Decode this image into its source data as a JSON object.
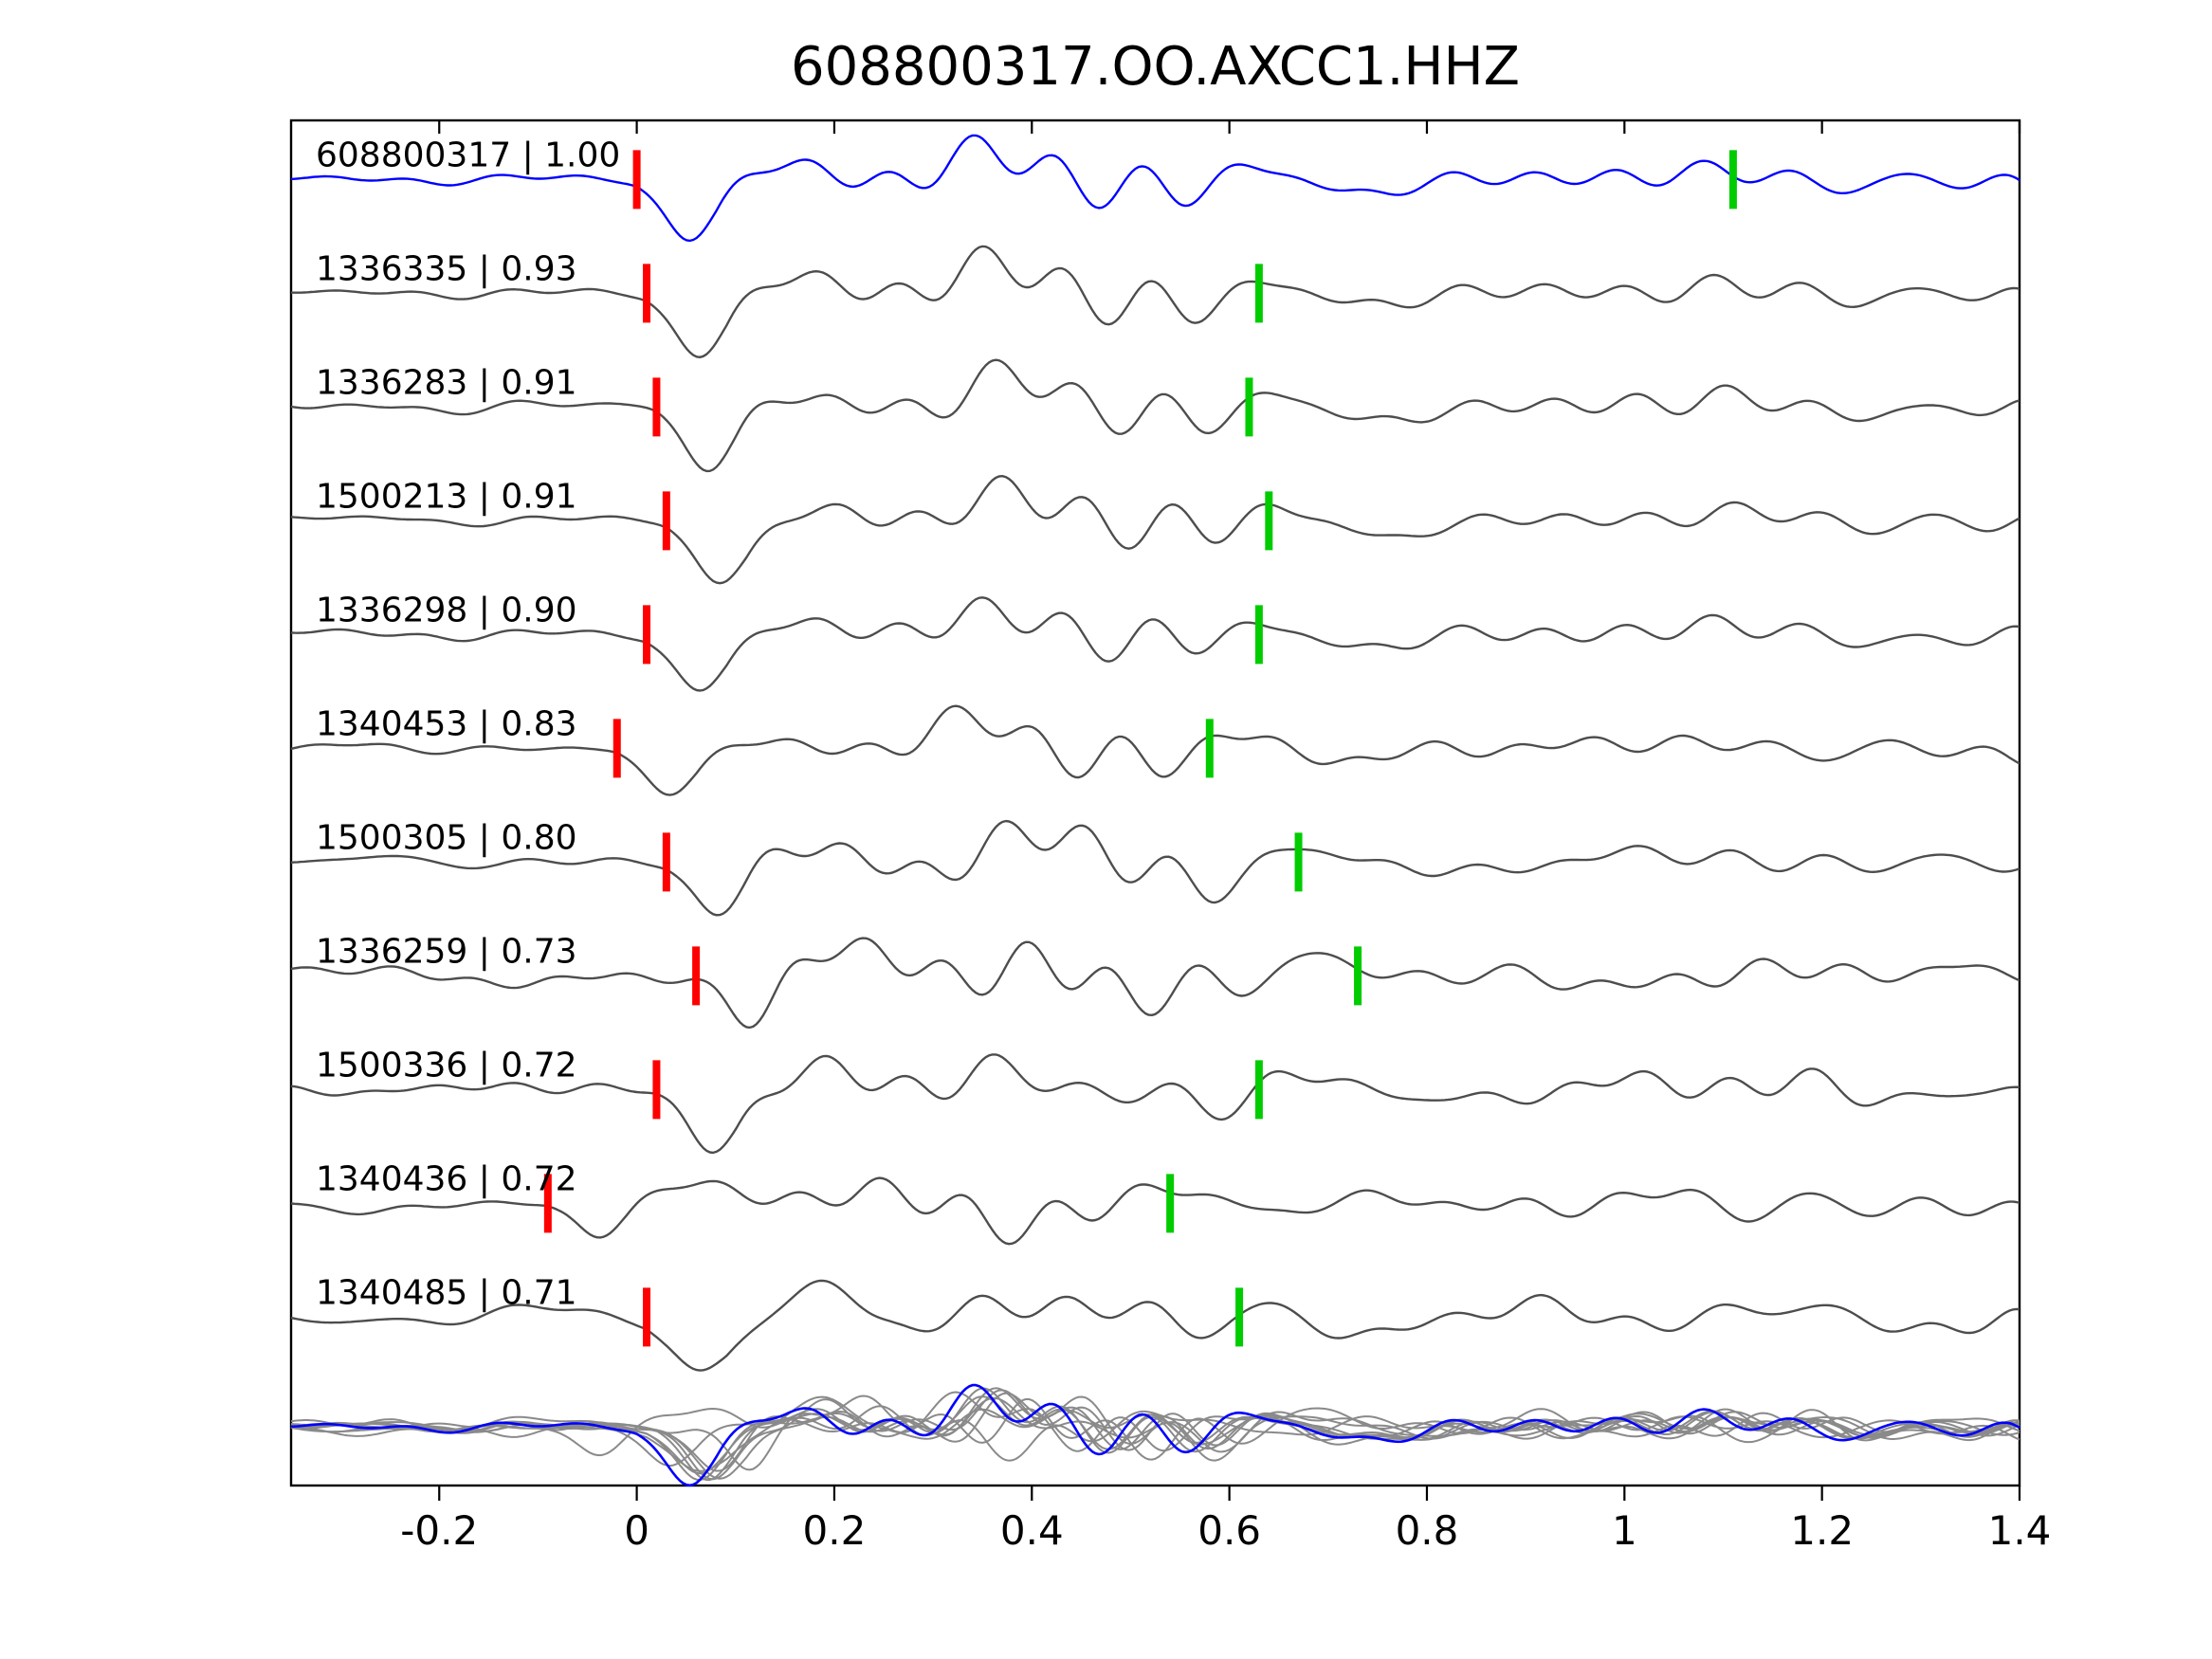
{
  "title": "608800317.OO.AXCC1.HHZ",
  "chart_data": {
    "type": "line",
    "title": "608800317.OO.AXCC1.HHZ",
    "xlabel": "",
    "ylabel": "",
    "grid": false,
    "xlim": [
      -0.35,
      1.4
    ],
    "x_ticks": [
      -0.2,
      0,
      0.2,
      0.4,
      0.6,
      0.8,
      1,
      1.2,
      1.4
    ],
    "x_tick_labels": [
      "-0.2",
      "0",
      "0.2",
      "0.4",
      "0.6",
      "0.8",
      "1",
      "1.2",
      "1.4"
    ],
    "marker_colors": {
      "pick": "#ff0000",
      "detection": "#00cc00"
    },
    "traces": [
      {
        "id": "608800317",
        "correlation": 1.0,
        "label": "608800317 | 1.00",
        "color": "#0000ff",
        "pick_time": 0.0,
        "marker_time": 1.11
      },
      {
        "id": "1336335",
        "correlation": 0.93,
        "label": "1336335 | 0.93",
        "color": "#4d4d4d",
        "pick_time": 0.01,
        "marker_time": 0.63
      },
      {
        "id": "1336283",
        "correlation": 0.91,
        "label": "1336283 | 0.91",
        "color": "#4d4d4d",
        "pick_time": 0.02,
        "marker_time": 0.62
      },
      {
        "id": "1500213",
        "correlation": 0.91,
        "label": "1500213 | 0.91",
        "color": "#4d4d4d",
        "pick_time": 0.03,
        "marker_time": 0.64
      },
      {
        "id": "1336298",
        "correlation": 0.9,
        "label": "1336298 | 0.90",
        "color": "#4d4d4d",
        "pick_time": 0.01,
        "marker_time": 0.63
      },
      {
        "id": "1340453",
        "correlation": 0.83,
        "label": "1340453 | 0.83",
        "color": "#4d4d4d",
        "pick_time": -0.02,
        "marker_time": 0.58
      },
      {
        "id": "1500305",
        "correlation": 0.8,
        "label": "1500305 | 0.80",
        "color": "#4d4d4d",
        "pick_time": 0.03,
        "marker_time": 0.67
      },
      {
        "id": "1336259",
        "correlation": 0.73,
        "label": "1336259 | 0.73",
        "color": "#4d4d4d",
        "pick_time": 0.06,
        "marker_time": 0.73
      },
      {
        "id": "1500336",
        "correlation": 0.72,
        "label": "1500336 | 0.72",
        "color": "#4d4d4d",
        "pick_time": 0.02,
        "marker_time": 0.63
      },
      {
        "id": "1340436",
        "correlation": 0.72,
        "label": "1340436 | 0.72",
        "color": "#4d4d4d",
        "pick_time": -0.09,
        "marker_time": 0.54
      },
      {
        "id": "1340485",
        "correlation": 0.71,
        "label": "1340485 | 0.71",
        "color": "#4d4d4d",
        "pick_time": 0.01,
        "marker_time": 0.61
      }
    ],
    "stack_overlay": {
      "gray_color": "#8a8a8a",
      "highlight_color": "#0000ff"
    },
    "frame_color": "#000000",
    "text_color": "#000000",
    "legend_position": "none"
  }
}
